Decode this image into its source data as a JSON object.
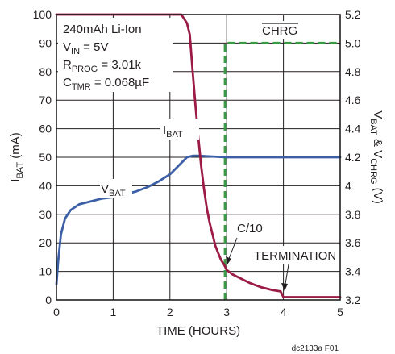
{
  "chart_data": {
    "type": "line",
    "xlabel": "TIME (HOURS)",
    "ylabel_left": {
      "main": "I",
      "sub": "BAT",
      "rest": " (mA)"
    },
    "ylabel_right": {
      "p1": "V",
      "s1": "BAT",
      "p2": " & V",
      "s2": "CHRG",
      "p3": " (V)"
    },
    "x_ticks": [
      "0",
      "1",
      "2",
      "3",
      "4",
      "5"
    ],
    "y_left_ticks": [
      "0",
      "10",
      "20",
      "30",
      "40",
      "50",
      "60",
      "70",
      "80",
      "90",
      "100"
    ],
    "y_right_ticks": [
      "3.2",
      "3.4",
      "3.6",
      "3.8",
      "4",
      "4.2",
      "4.4",
      "4.6",
      "4.8",
      "5.0",
      "5.2"
    ],
    "xlim": [
      0,
      5
    ],
    "ylim_left": [
      0,
      100
    ],
    "ylim_right": [
      3.2,
      5.2
    ],
    "grid": true,
    "conditions": {
      "line1": "240mAh Li-Ion",
      "line2": {
        "main": "V",
        "sub": "IN",
        "rest": " = 5V"
      },
      "line3": {
        "main": "R",
        "sub": "PROG",
        "rest": " = 3.01k"
      },
      "line4": {
        "main": "C",
        "sub": "TMR",
        "rest": " = 0.068µF"
      }
    },
    "series": [
      {
        "name": {
          "main": "I",
          "sub": "BAT"
        },
        "axis": "left",
        "color": "#9b1b45",
        "dash": false,
        "x": [
          0,
          0.5,
          1,
          1.5,
          2,
          2.2,
          2.3,
          2.35,
          2.4,
          2.45,
          2.5,
          2.55,
          2.6,
          2.65,
          2.7,
          2.75,
          2.8,
          2.85,
          2.9,
          2.95,
          3.0,
          3.1,
          3.2,
          3.4,
          3.6,
          3.8,
          3.95,
          4.0,
          4.5,
          5.0
        ],
        "y": [
          100,
          100,
          100,
          100,
          100,
          100,
          97,
          93,
          80,
          68,
          57,
          47,
          39,
          32,
          27,
          23,
          19,
          16.5,
          14,
          12.5,
          10.5,
          9,
          8,
          6,
          4.5,
          3.5,
          3,
          1,
          1,
          1
        ]
      },
      {
        "name": {
          "main": "V",
          "sub": "BAT"
        },
        "axis": "right",
        "color": "#3c5fa6",
        "dash": false,
        "x": [
          0,
          0.03,
          0.08,
          0.15,
          0.25,
          0.4,
          0.6,
          0.8,
          1.0,
          1.2,
          1.4,
          1.6,
          1.8,
          2.0,
          2.1,
          2.2,
          2.3,
          2.4,
          2.5,
          3.0,
          3.5,
          4.0,
          4.5,
          5.0
        ],
        "y": [
          3.31,
          3.47,
          3.66,
          3.77,
          3.83,
          3.87,
          3.89,
          3.91,
          3.92,
          3.94,
          3.96,
          3.99,
          4.03,
          4.08,
          4.12,
          4.16,
          4.2,
          4.21,
          4.21,
          4.2,
          4.2,
          4.2,
          4.2,
          4.2
        ]
      },
      {
        "name": {
          "main": "CHRG"
        },
        "axis": "right",
        "color": "#3a9a48",
        "dash": true,
        "x": [
          2.97,
          2.97,
          5.0
        ],
        "y": [
          3.2,
          5.0,
          5.0
        ]
      }
    ],
    "annotations": {
      "c10": "C/10",
      "termination": "TERMINATION"
    },
    "footer": "dc2133a F01"
  }
}
